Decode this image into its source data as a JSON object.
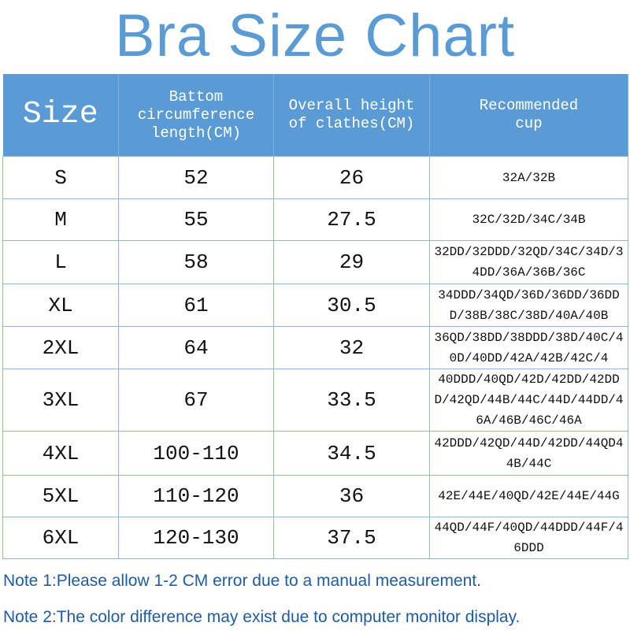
{
  "title": "Bra Size Chart",
  "headers": [
    "Size",
    "Battom circumference length(CM)",
    "Overall height of clathes(CM)",
    "Recommended cup"
  ],
  "rows": [
    {
      "size": "S",
      "bottom": "52",
      "height": "26",
      "cup": "32A/32B"
    },
    {
      "size": "M",
      "bottom": "55",
      "height": "27.5",
      "cup": "32C/32D/34C/34B"
    },
    {
      "size": "L",
      "bottom": "58",
      "height": "29",
      "cup": "32DD/32DDD/32QD/34C/34D/34DD/36A/36B/36C"
    },
    {
      "size": "XL",
      "bottom": "61",
      "height": "30.5",
      "cup": "34DDD/34QD/36D/36DD/36DDD/38B/38C/38D/40A/40B"
    },
    {
      "size": "2XL",
      "bottom": "64",
      "height": "32",
      "cup": "36QD/38DD/38DDD/38D/40C/40D/40DD/42A/42B/42C/4"
    },
    {
      "size": "3XL",
      "bottom": "67",
      "height": "33.5",
      "cup": "40DDD/40QD/42D/42DD/42DDD/42QD/44B/44C/44D/44DD/46A/46B/46C/46A"
    },
    {
      "size": "4XL",
      "bottom": "100-110",
      "height": "34.5",
      "cup": "42DDD/42QD/44D/42DD/44QD44B/44C"
    },
    {
      "size": "5XL",
      "bottom": "110-120",
      "height": "36",
      "cup": "42E/44E/40QD/42E/44E/44G"
    },
    {
      "size": "6XL",
      "bottom": "120-130",
      "height": "37.5",
      "cup": "44QD/44F/40QD/44DDD/44F/46DDD"
    }
  ],
  "notes": [
    "Note 1:Please allow 1-2 CM error due to a manual measurement.",
    "Note 2:The color difference may exist due to computer monitor display."
  ],
  "colors": {
    "accent": "#5b9bd5",
    "note": "#1e5ba8"
  }
}
